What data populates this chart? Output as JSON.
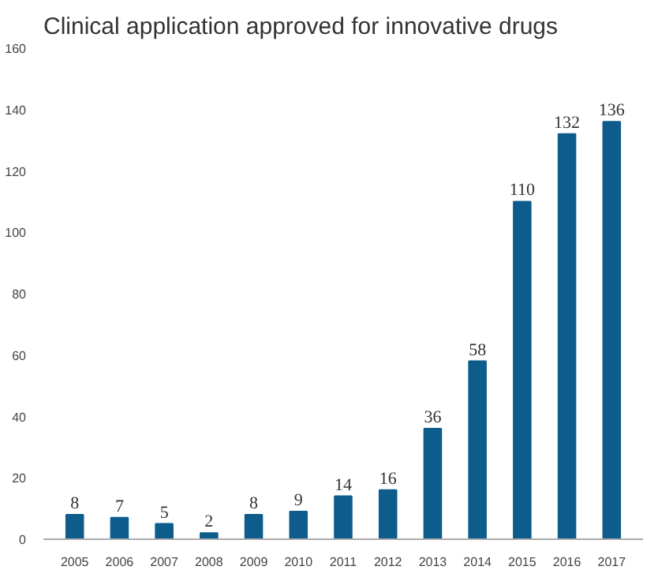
{
  "chart_data": {
    "type": "bar",
    "title": "Clinical application approved for innovative drugs",
    "categories": [
      "2005",
      "2006",
      "2007",
      "2008",
      "2009",
      "2010",
      "2011",
      "2012",
      "2013",
      "2014",
      "2015",
      "2016",
      "2017"
    ],
    "values": [
      8,
      7,
      5,
      2,
      8,
      9,
      14,
      16,
      36,
      58,
      110,
      132,
      136
    ],
    "color": "#0d5c8c",
    "ylim": [
      0,
      160
    ],
    "yticks": [
      0,
      20,
      40,
      60,
      80,
      100,
      120,
      140,
      160
    ],
    "grid": false,
    "data_labels": true
  }
}
